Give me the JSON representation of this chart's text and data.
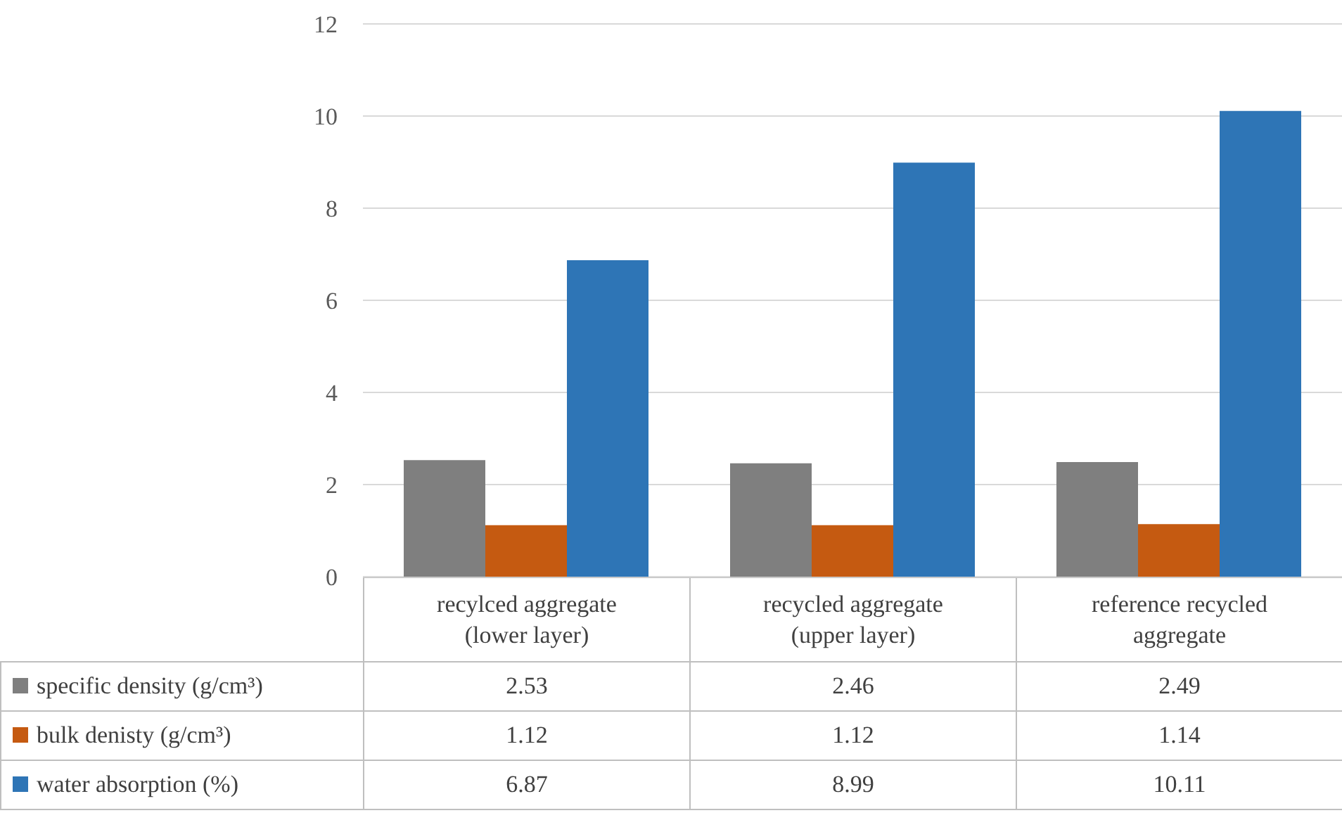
{
  "chart_data": {
    "type": "bar",
    "categories": [
      "recylced aggregate (lower layer)",
      "recycled aggregate (upper layer)",
      "reference recycled aggregate"
    ],
    "series": [
      {
        "name": "specific density (g/cm³)",
        "color": "#7f7f7f",
        "values": [
          2.53,
          2.46,
          2.49
        ]
      },
      {
        "name": "bulk denisty (g/cm³)",
        "color": "#c55a11",
        "values": [
          1.12,
          1.12,
          1.14
        ]
      },
      {
        "name": "water absorption (%)",
        "color": "#2e75b6",
        "values": [
          6.87,
          8.99,
          10.11
        ]
      }
    ],
    "ylim": [
      0,
      12
    ],
    "yticks": [
      0,
      2,
      4,
      6,
      8,
      10,
      12
    ],
    "grid": "y",
    "legend": "bottom",
    "data_labels": true
  }
}
